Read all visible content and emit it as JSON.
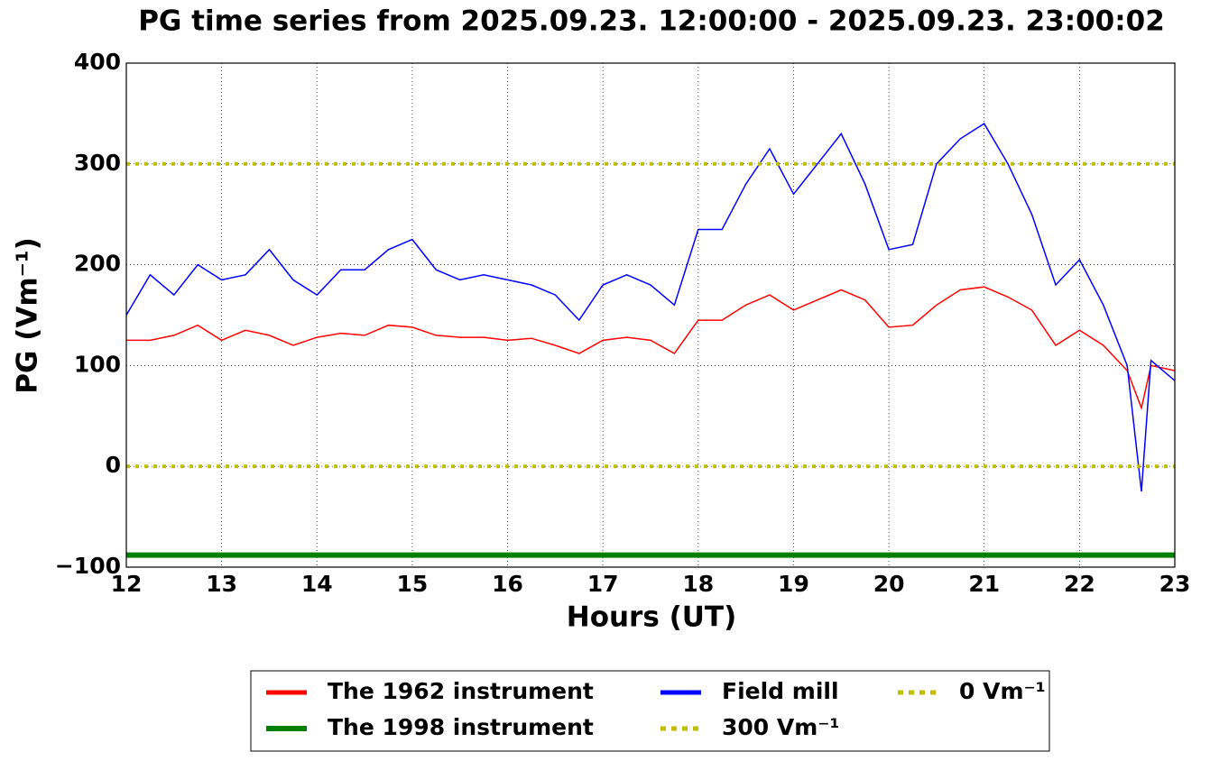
{
  "chart_data": {
    "type": "line",
    "title": "PG time series from 2025.09.23. 12:00:00 - 2025.09.23. 23:00:02",
    "xlabel": "Hours (UT)",
    "ylabel": "PG (Vm⁻¹)",
    "xlim": [
      12,
      23
    ],
    "xticks": [
      12,
      13,
      14,
      15,
      16,
      17,
      18,
      19,
      20,
      21,
      22,
      23
    ],
    "ylim": [
      -100,
      400
    ],
    "yticks": [
      {
        "value": -100,
        "label": "−100"
      },
      0,
      100,
      200,
      300,
      400
    ],
    "grid": true,
    "legend": "bottom",
    "x": [
      12,
      12.25,
      12.5,
      12.75,
      13,
      13.25,
      13.5,
      13.75,
      14,
      14.25,
      14.5,
      14.75,
      15,
      15.25,
      15.5,
      15.75,
      16,
      16.25,
      16.5,
      16.75,
      17,
      17.25,
      17.5,
      17.75,
      18,
      18.25,
      18.5,
      18.75,
      19,
      19.25,
      19.5,
      19.75,
      20,
      20.25,
      20.5,
      20.75,
      21,
      21.25,
      21.5,
      21.75,
      22,
      22.25,
      22.5,
      22.65,
      22.75,
      23
    ],
    "series": [
      {
        "name": "The 1962 instrument",
        "color": "#ff0000",
        "width": 1.5,
        "values": [
          125,
          125,
          130,
          140,
          125,
          135,
          130,
          120,
          128,
          132,
          130,
          140,
          138,
          130,
          128,
          128,
          125,
          127,
          120,
          112,
          125,
          128,
          125,
          112,
          145,
          145,
          160,
          170,
          155,
          165,
          175,
          165,
          138,
          140,
          160,
          175,
          178,
          168,
          155,
          120,
          135,
          120,
          95,
          58,
          100,
          95
        ]
      },
      {
        "name": "The 1998 instrument",
        "color": "#008000",
        "width": 6,
        "values": [
          -88,
          -88,
          -88,
          -88,
          -88,
          -88,
          -88,
          -88,
          -88,
          -88,
          -88,
          -88,
          -88,
          -88,
          -88,
          -88,
          -88,
          -88,
          -88,
          -88,
          -88,
          -88,
          -88,
          -88,
          -88,
          -88,
          -88,
          -88,
          -88,
          -88,
          -88,
          -88,
          -88,
          -88,
          -88,
          -88,
          -88,
          -88,
          -88,
          -88,
          -88,
          -88,
          -88,
          -88,
          -88,
          -88
        ]
      },
      {
        "name": "Field mill",
        "color": "#0000ff",
        "width": 1.5,
        "values": [
          150,
          190,
          170,
          200,
          185,
          190,
          215,
          185,
          170,
          195,
          195,
          215,
          225,
          195,
          185,
          190,
          185,
          180,
          170,
          145,
          180,
          190,
          180,
          160,
          235,
          235,
          280,
          315,
          270,
          300,
          330,
          280,
          215,
          220,
          300,
          325,
          340,
          300,
          250,
          180,
          205,
          160,
          100,
          -25,
          105,
          85
        ]
      },
      {
        "name": "300 Vm⁻¹",
        "color": "#bfbf00",
        "width": 4,
        "dashed": true,
        "values": [
          300,
          300,
          300,
          300,
          300,
          300,
          300,
          300,
          300,
          300,
          300,
          300,
          300,
          300,
          300,
          300,
          300,
          300,
          300,
          300,
          300,
          300,
          300,
          300,
          300,
          300,
          300,
          300,
          300,
          300,
          300,
          300,
          300,
          300,
          300,
          300,
          300,
          300,
          300,
          300,
          300,
          300,
          300,
          300,
          300,
          300
        ]
      },
      {
        "name": "0 Vm⁻¹",
        "color": "#bfbf00",
        "width": 4,
        "dashed": true,
        "values": [
          0,
          0,
          0,
          0,
          0,
          0,
          0,
          0,
          0,
          0,
          0,
          0,
          0,
          0,
          0,
          0,
          0,
          0,
          0,
          0,
          0,
          0,
          0,
          0,
          0,
          0,
          0,
          0,
          0,
          0,
          0,
          0,
          0,
          0,
          0,
          0,
          0,
          0,
          0,
          0,
          0,
          0,
          0,
          0,
          0,
          0
        ]
      }
    ]
  }
}
